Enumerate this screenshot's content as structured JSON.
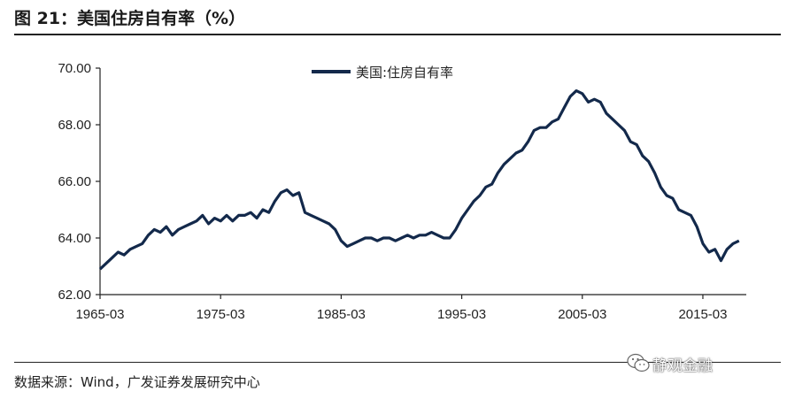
{
  "header": {
    "title": "图 21：美国住房自有率（%）"
  },
  "footer": {
    "source": "数据来源：Wind，广发证券发展研究中心"
  },
  "watermark": {
    "text": "静观金融",
    "icon": "wechat-icon"
  },
  "colors": {
    "series": "#13294b",
    "axis": "#222222"
  },
  "chart_data": {
    "type": "line",
    "title": "",
    "xlabel": "",
    "ylabel": "",
    "ylim": [
      62,
      70
    ],
    "yticks": [
      "62.00",
      "64.00",
      "66.00",
      "68.00",
      "70.00"
    ],
    "xticks": [
      "1965-03",
      "1975-03",
      "1985-03",
      "1995-03",
      "2005-03",
      "2015-03"
    ],
    "legend_position": "top-center",
    "grid": false,
    "series": [
      {
        "name": "美国:住房自有率",
        "x": [
          1965.0,
          1966.0,
          1966.5,
          1967.0,
          1967.5,
          1968.0,
          1968.5,
          1969.0,
          1969.5,
          1970.0,
          1970.5,
          1971.0,
          1971.5,
          1972.0,
          1972.5,
          1973.0,
          1973.5,
          1974.0,
          1974.5,
          1975.0,
          1975.5,
          1976.0,
          1976.5,
          1977.0,
          1977.5,
          1978.0,
          1978.5,
          1979.0,
          1979.5,
          1980.0,
          1980.5,
          1981.0,
          1981.5,
          1982.0,
          1982.5,
          1983.0,
          1983.5,
          1984.0,
          1984.5,
          1985.0,
          1985.5,
          1986.0,
          1986.5,
          1987.0,
          1987.5,
          1988.0,
          1988.5,
          1989.0,
          1989.5,
          1990.0,
          1990.5,
          1991.0,
          1991.5,
          1992.0,
          1992.5,
          1993.0,
          1993.5,
          1994.0,
          1994.5,
          1995.0,
          1995.5,
          1996.0,
          1996.5,
          1997.0,
          1997.5,
          1998.0,
          1998.5,
          1999.0,
          1999.5,
          2000.0,
          2000.5,
          2001.0,
          2001.5,
          2002.0,
          2002.5,
          2003.0,
          2003.5,
          2004.0,
          2004.5,
          2005.0,
          2005.5,
          2006.0,
          2006.5,
          2007.0,
          2007.5,
          2008.0,
          2008.5,
          2009.0,
          2009.5,
          2010.0,
          2010.5,
          2011.0,
          2011.5,
          2012.0,
          2012.5,
          2013.0,
          2013.5,
          2014.0,
          2014.5,
          2015.0,
          2015.5,
          2016.0,
          2016.5,
          2017.0,
          2017.5,
          2018.0
        ],
        "values": [
          62.9,
          63.3,
          63.5,
          63.4,
          63.6,
          63.7,
          63.8,
          64.1,
          64.3,
          64.2,
          64.4,
          64.1,
          64.3,
          64.4,
          64.5,
          64.6,
          64.8,
          64.5,
          64.7,
          64.6,
          64.8,
          64.6,
          64.8,
          64.8,
          64.9,
          64.7,
          65.0,
          64.9,
          65.3,
          65.6,
          65.7,
          65.5,
          65.6,
          64.9,
          64.8,
          64.7,
          64.6,
          64.5,
          64.3,
          63.9,
          63.7,
          63.8,
          63.9,
          64.0,
          64.0,
          63.9,
          64.0,
          64.0,
          63.9,
          64.0,
          64.1,
          64.0,
          64.1,
          64.1,
          64.2,
          64.1,
          64.0,
          64.0,
          64.3,
          64.7,
          65.0,
          65.3,
          65.5,
          65.8,
          65.9,
          66.3,
          66.6,
          66.8,
          67.0,
          67.1,
          67.4,
          67.8,
          67.9,
          67.9,
          68.1,
          68.2,
          68.6,
          69.0,
          69.2,
          69.1,
          68.8,
          68.9,
          68.8,
          68.4,
          68.2,
          68.0,
          67.8,
          67.4,
          67.3,
          66.9,
          66.7,
          66.3,
          65.8,
          65.5,
          65.4,
          65.0,
          64.9,
          64.8,
          64.4,
          63.8,
          63.5,
          63.6,
          63.2,
          63.6,
          63.8,
          63.9
        ]
      }
    ]
  }
}
